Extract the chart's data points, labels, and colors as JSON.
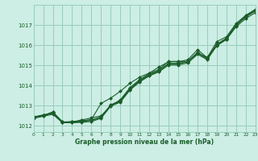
{
  "xlabel": "Graphe pression niveau de la mer (hPa)",
  "xlim": [
    0,
    23
  ],
  "ylim": [
    1011.7,
    1018.0
  ],
  "yticks": [
    1012,
    1013,
    1014,
    1015,
    1016,
    1017
  ],
  "xticks": [
    0,
    1,
    2,
    3,
    4,
    5,
    6,
    7,
    8,
    9,
    10,
    11,
    12,
    13,
    14,
    15,
    16,
    17,
    18,
    19,
    20,
    21,
    22,
    23
  ],
  "bg_color": "#cceee4",
  "grid_color": "#99ccbb",
  "line_color": "#1a5c2a",
  "series": [
    [
      1012.45,
      1012.55,
      1012.65,
      1012.2,
      1012.2,
      1012.25,
      1012.3,
      1012.45,
      1013.05,
      1013.25,
      1013.85,
      1014.25,
      1014.55,
      1014.75,
      1015.1,
      1015.1,
      1015.2,
      1015.65,
      1015.35,
      1016.05,
      1016.35,
      1017.0,
      1017.45,
      1017.75
    ],
    [
      1012.42,
      1012.52,
      1012.62,
      1012.18,
      1012.18,
      1012.22,
      1012.28,
      1012.42,
      1013.02,
      1013.22,
      1013.82,
      1014.22,
      1014.52,
      1014.72,
      1015.08,
      1015.08,
      1015.18,
      1015.62,
      1015.32,
      1016.02,
      1016.32,
      1016.98,
      1017.42,
      1017.72
    ],
    [
      1012.42,
      1012.52,
      1012.68,
      1012.18,
      1012.22,
      1012.25,
      1012.32,
      1013.12,
      1013.38,
      1013.72,
      1014.12,
      1014.42,
      1014.62,
      1014.92,
      1015.18,
      1015.18,
      1015.28,
      1015.78,
      1015.38,
      1016.18,
      1016.42,
      1017.08,
      1017.48,
      1017.78
    ],
    [
      1012.4,
      1012.5,
      1012.7,
      1012.2,
      1012.2,
      1012.3,
      1012.4,
      1012.5,
      1013.0,
      1013.3,
      1013.9,
      1014.3,
      1014.6,
      1014.8,
      1015.2,
      1015.2,
      1015.2,
      1015.6,
      1015.4,
      1016.0,
      1016.3,
      1017.0,
      1017.4,
      1017.7
    ],
    [
      1012.38,
      1012.48,
      1012.58,
      1012.16,
      1012.16,
      1012.18,
      1012.22,
      1012.38,
      1012.98,
      1013.18,
      1013.78,
      1014.18,
      1014.48,
      1014.68,
      1015.02,
      1015.02,
      1015.12,
      1015.55,
      1015.28,
      1015.98,
      1016.28,
      1016.92,
      1017.32,
      1017.62
    ]
  ]
}
